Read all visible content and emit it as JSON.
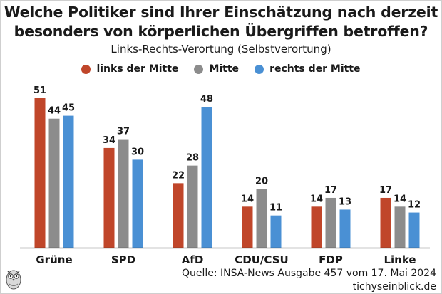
{
  "header": {
    "title_line1": "Welche Politiker sind Ihrer Einschätzung nach derzeit",
    "title_line2": "besonders von körperlichen Übergriffen betroffen?",
    "subtitle": "Links-Rechts-Verortung (Selbstverortung)"
  },
  "footer": {
    "source": "Quelle: INSA-News Ausgabe 457 vom 17. Mai 2024",
    "site": "tichyseinblick.de"
  },
  "colors": {
    "links": "#c0462a",
    "mitte": "#8c8c8c",
    "rechts": "#4a90d4"
  },
  "chart_data": {
    "type": "bar",
    "title": "Welche Politiker sind Ihrer Einschätzung nach derzeit besonders von körperlichen Übergriffen betroffen?",
    "subtitle": "Links-Rechts-Verortung (Selbstverortung)",
    "categories": [
      "Grüne",
      "SPD",
      "AfD",
      "CDU/CSU",
      "FDP",
      "Linke"
    ],
    "series": [
      {
        "name": "links der Mitte",
        "values": [
          51,
          34,
          22,
          14,
          14,
          17
        ]
      },
      {
        "name": "Mitte",
        "values": [
          44,
          37,
          28,
          20,
          17,
          14
        ]
      },
      {
        "name": "rechts der Mitte",
        "values": [
          45,
          30,
          48,
          11,
          13,
          12
        ]
      }
    ],
    "ylim": [
      0,
      51
    ],
    "legend_position": "top",
    "grid": false
  }
}
